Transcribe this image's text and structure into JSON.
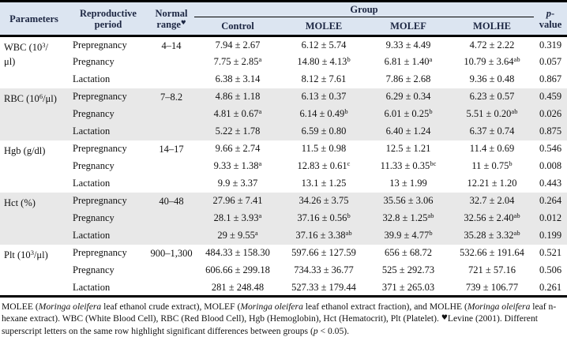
{
  "table": {
    "header": {
      "parameters": "Parameters",
      "reproductive_period": "Reproductive period",
      "normal_range": "Normal range",
      "normal_range_marker": "♥",
      "group": "Group",
      "group_columns": [
        "Control",
        "MOLEE",
        "MOLEF",
        "MOLHE"
      ],
      "p_value_italic": "p",
      "p_value_rest": "-value"
    },
    "sections": [
      {
        "param_pre": "WBC (10",
        "param_sup": "3",
        "param_post": "/\nμl)",
        "normal_range": "4–14",
        "shaded": false,
        "rows": [
          {
            "period": "Prepregnancy",
            "values": [
              "7.94 ± 2.67",
              "6.12 ± 5.74",
              "9.33 ± 4.49",
              "4.72 ± 2.22"
            ],
            "p": "0.319"
          },
          {
            "period": "Pregnancy",
            "values": [
              "7.75 ± 2.85^a",
              "14.80 ± 4.13^b",
              "6.81 ± 1.40^a",
              "10.79 ± 3.64^ab"
            ],
            "p": "0.057"
          },
          {
            "period": "Lactation",
            "values": [
              "6.38 ± 3.14",
              "8.12 ± 7.61",
              "7.86 ± 2.68",
              "9.36 ± 0.48"
            ],
            "p": "0.867"
          }
        ]
      },
      {
        "param_pre": "RBC (10",
        "param_sup": "6",
        "param_post": "/μl)",
        "normal_range": "7–8.2",
        "shaded": true,
        "rows": [
          {
            "period": "Prepregnancy",
            "values": [
              "4.86 ± 1.18",
              "6.13 ± 0.37",
              "6.29 ± 0.34",
              "6.23 ± 0.57"
            ],
            "p": "0.459"
          },
          {
            "period": "Pregnancy",
            "values": [
              "4.81 ± 0.67^a",
              "6.14 ± 0.49^b",
              "6.01 ± 0.25^b",
              "5.51 ± 0.20^ab"
            ],
            "p": "0.026"
          },
          {
            "period": "Lactation",
            "values": [
              "5.22 ± 1.78",
              "6.59 ± 0.80",
              "6.40 ± 1.24",
              "6.37 ± 0.74"
            ],
            "p": "0.875"
          }
        ]
      },
      {
        "param_pre": "Hgb (g/dl)",
        "param_sup": "",
        "param_post": "",
        "normal_range": "14–17",
        "shaded": false,
        "rows": [
          {
            "period": "Prepregnancy",
            "values": [
              "9.66 ± 2.74",
              "11.5 ± 0.98",
              "12.5 ± 1.21",
              "11.4 ± 0.69"
            ],
            "p": "0.546"
          },
          {
            "period": "Pregnancy",
            "values": [
              "9.33 ± 1.38^a",
              "12.83 ± 0.61^c",
              "11.33 ± 0.35^bc",
              "11 ± 0.75^b"
            ],
            "p": "0.008"
          },
          {
            "period": "Lactation",
            "values": [
              "9.9 ± 3.37",
              "13.1 ± 1.25",
              "13 ± 1.99",
              "12.21 ± 1.20"
            ],
            "p": "0.443"
          }
        ]
      },
      {
        "param_pre": "Hct (%)",
        "param_sup": "",
        "param_post": "",
        "normal_range": "40–48",
        "shaded": true,
        "rows": [
          {
            "period": "Prepregnancy",
            "values": [
              "27.96 ± 7.41",
              "34.26 ± 3.75",
              "35.56 ± 3.06",
              "32.7 ± 2.04"
            ],
            "p": "0.264"
          },
          {
            "period": "Pregnancy",
            "values": [
              "28.1 ± 3.93^a",
              "37.16 ± 0.56^b",
              "32.8 ± 1.25^ab",
              "32.56 ± 2.40^ab"
            ],
            "p": "0.012"
          },
          {
            "period": "Lactation",
            "values": [
              "29 ± 9.55^a",
              "37.16 ± 3.38^ab",
              "39.9 ± 4.77^b",
              "35.28 ± 3.32^ab"
            ],
            "p": "0.199"
          }
        ]
      },
      {
        "param_pre": "Plt (10",
        "param_sup": "3",
        "param_post": "/μl)",
        "normal_range": "900–1,300",
        "shaded": false,
        "rows": [
          {
            "period": "Prepregnancy",
            "values": [
              "484.33 ± 158.30",
              "597.66 ± 127.59",
              "656 ± 68.72",
              "532.66 ± 191.64"
            ],
            "p": "0.521"
          },
          {
            "period": "Pregnancy",
            "values": [
              "606.66 ± 299.18",
              "734.33 ± 36.77",
              "525 ± 292.73",
              "721 ± 57.16"
            ],
            "p": "0.506"
          },
          {
            "period": "Lactation",
            "values": [
              "281 ± 248.48",
              "527.33 ± 179.44",
              "371 ± 265.03",
              "739 ± 106.77"
            ],
            "p": "0.261"
          }
        ]
      }
    ]
  },
  "footnote": {
    "segments": [
      {
        "t": "MOLEE ("
      },
      {
        "t": "Moringa oleifera",
        "i": true
      },
      {
        "t": " leaf ethanol crude extract), MOLEF ("
      },
      {
        "t": "Moringa oleifera",
        "i": true
      },
      {
        "t": " leaf ethanol extract fraction), and MOLHE ("
      },
      {
        "t": "Moringa oleifera",
        "i": true
      },
      {
        "t": " leaf n-hexane extract). WBC (White Blood Cell), RBC (Red Blood Cell), Hgb (Hemoglobin), Hct (Hematocrit), Plt (Platelet). "
      },
      {
        "t": "♥",
        "m": true
      },
      {
        "t": "Levine (2001). Different superscript letters on the same row highlight significant differences between groups ("
      },
      {
        "t": "p",
        "i": true
      },
      {
        "t": " < 0.05)."
      }
    ]
  }
}
